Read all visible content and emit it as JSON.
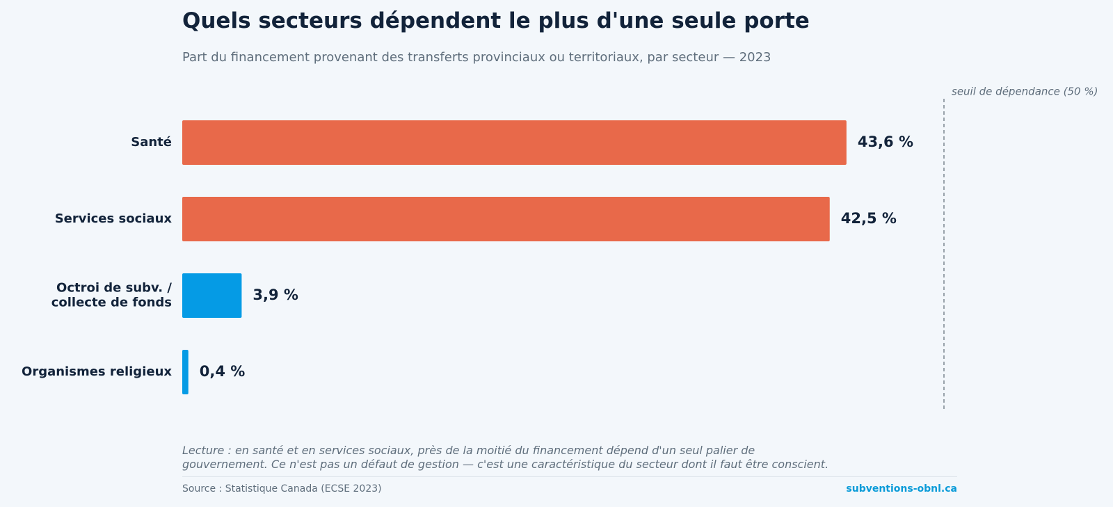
{
  "chart_data": {
    "type": "hbar",
    "title": "Quels secteurs dépendent le plus d'une seule porte",
    "subtitle": "Part du financement provenant des transferts provinciaux ou territoriaux, par secteur — 2023",
    "categories": [
      "Santé",
      "Services sociaux",
      "Octroi de subv. /\ncollecte de fonds",
      "Organismes religieux"
    ],
    "values": [
      43.6,
      42.5,
      3.9,
      0.4
    ],
    "value_labels": [
      "43,6 %",
      "42,5 %",
      "3,9 %",
      "0,4 %"
    ],
    "colors": [
      "#e8694a",
      "#e8694a",
      "#059be5",
      "#059be5"
    ],
    "xlim": [
      0,
      50
    ],
    "threshold": {
      "value": 50,
      "label": "seuil de dépendance (50 %)"
    },
    "note": "Lecture : en santé et en services sociaux, près de la moitié du financement dépend d'un seul palier de gouvernement. Ce n'est pas un défaut de gestion — c'est une caractéristique du secteur dont il faut être conscient.",
    "source": "Source : Statistique Canada (ECSE 2023)",
    "brand": "subventions-obnl.ca"
  }
}
